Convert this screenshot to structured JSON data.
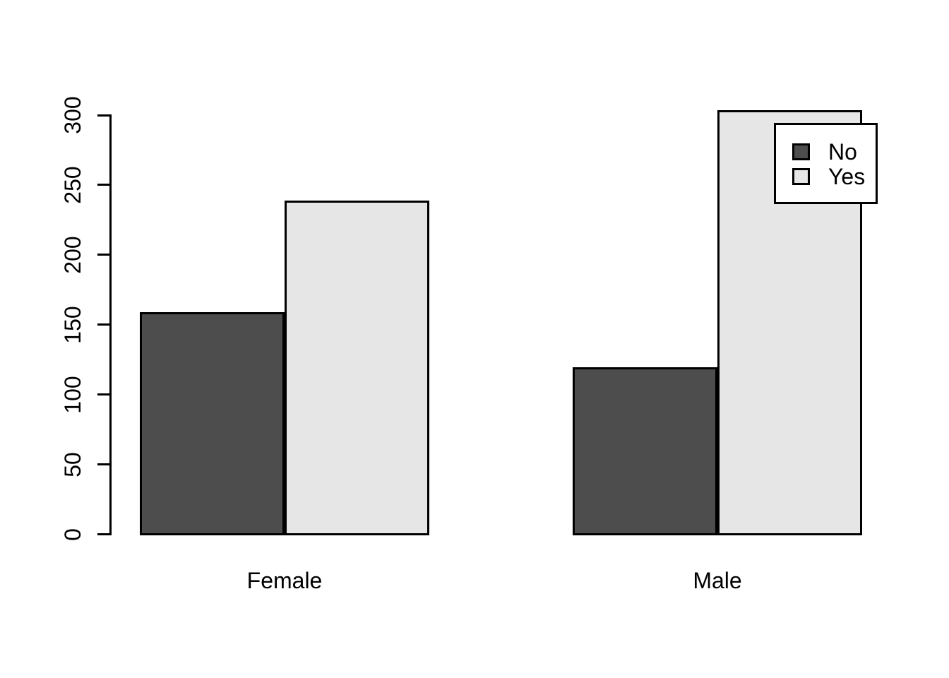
{
  "figure": {
    "background_color": "#ffffff",
    "text_color": "#000000",
    "axis_color": "#000000",
    "bar_border_color": "#000000",
    "legend_background_color": "#ffffff",
    "legend_border_color": "#000000"
  },
  "chart_data": {
    "type": "bar",
    "grouped": true,
    "title": "",
    "xlabel": "",
    "ylabel": "",
    "categories": [
      "Female",
      "Male"
    ],
    "series": [
      {
        "name": "No",
        "color": "#4D4D4D",
        "values": [
          158,
          119
        ]
      },
      {
        "name": "Yes",
        "color": "#E6E6E6",
        "values": [
          238,
          303
        ]
      }
    ],
    "ylim": [
      0,
      300
    ],
    "yticks": [
      0,
      50,
      100,
      150,
      200,
      250,
      300
    ],
    "grid": false,
    "legend": {
      "position": "top-right",
      "entries": [
        {
          "label": "No",
          "color": "#4D4D4D"
        },
        {
          "label": "Yes",
          "color": "#E6E6E6"
        }
      ]
    }
  }
}
